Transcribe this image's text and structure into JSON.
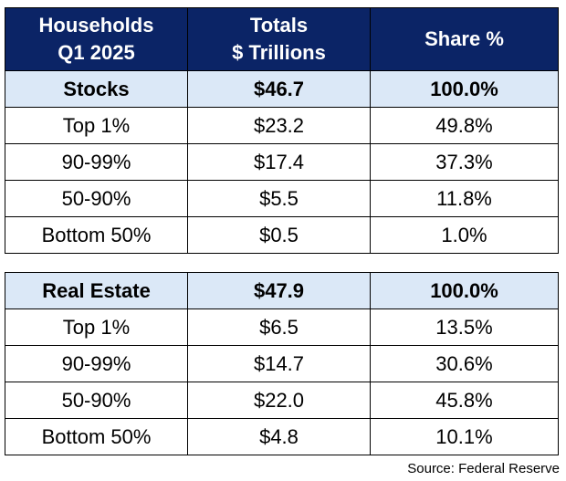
{
  "header": {
    "col1": "Households\nQ1 2025",
    "col2_line1": "Totals",
    "col2_line2": "$ Trillions",
    "col3": "Share %"
  },
  "chart_data": [
    {
      "type": "table",
      "columns": [
        "Households Q1 2025",
        "Totals $ Trillions",
        "Share %"
      ],
      "total": {
        "label": "Stocks",
        "total": "$46.7",
        "share": "100.0%"
      },
      "rows": [
        {
          "label": "Top 1%",
          "total": "$23.2",
          "share": "49.8%"
        },
        {
          "label": "90-99%",
          "total": "$17.4",
          "share": "37.3%"
        },
        {
          "label": "50-90%",
          "total": "$5.5",
          "share": "11.8%"
        },
        {
          "label": "Bottom 50%",
          "total": "$0.5",
          "share": "1.0%"
        }
      ]
    },
    {
      "type": "table",
      "columns": [
        "Households Q1 2025",
        "Totals $ Trillions",
        "Share %"
      ],
      "total": {
        "label": "Real Estate",
        "total": "$47.9",
        "share": "100.0%"
      },
      "rows": [
        {
          "label": "Top 1%",
          "total": "$6.5",
          "share": "13.5%"
        },
        {
          "label": "90-99%",
          "total": "$14.7",
          "share": "30.6%"
        },
        {
          "label": "50-90%",
          "total": "$22.0",
          "share": "45.8%"
        },
        {
          "label": "Bottom 50%",
          "total": "$4.8",
          "share": "10.1%"
        }
      ]
    }
  ],
  "source": "Source: Federal Reserve"
}
